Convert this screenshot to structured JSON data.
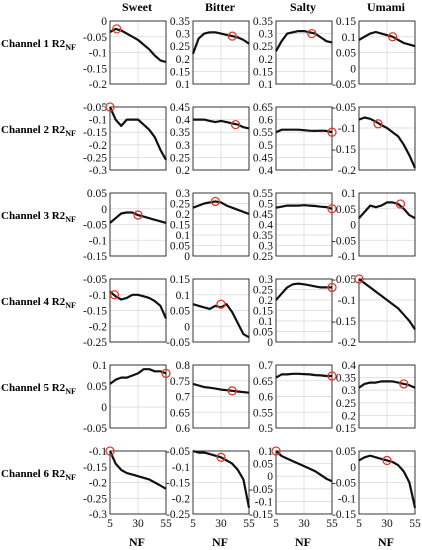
{
  "figure": {
    "columns": [
      "Sweet",
      "Bitter",
      "Salty",
      "Umami"
    ],
    "row_labels": [
      "Channel 1 R2",
      "Channel 2 R2",
      "Channel 3 R2",
      "Channel 4 R2",
      "Channel 5 R2",
      "Channel 6 R2"
    ],
    "row_label_subscript": "NF",
    "xlabel": "NF",
    "colors": {
      "line": "#111111",
      "marker": "#e03a2a",
      "grid": "#d9d9d9"
    }
  },
  "chart_data": [
    {
      "type": "line",
      "row": 1,
      "column": "Sweet",
      "xlim": [
        5,
        55
      ],
      "ylim": [
        -0.2,
        0
      ],
      "yticks": [
        "0",
        "-0.05",
        "-0.1",
        "-0.15",
        "-0.2"
      ],
      "xticks": [],
      "x": [
        5,
        10,
        15,
        20,
        25,
        30,
        35,
        40,
        45,
        50,
        55
      ],
      "y": [
        -0.035,
        -0.025,
        -0.03,
        -0.04,
        -0.05,
        -0.06,
        -0.075,
        -0.09,
        -0.11,
        -0.125,
        -0.13
      ],
      "marker": {
        "x": 11,
        "y": -0.025
      }
    },
    {
      "type": "line",
      "row": 1,
      "column": "Bitter",
      "xlim": [
        5,
        55
      ],
      "ylim": [
        0.1,
        0.35
      ],
      "yticks": [
        "0.35",
        "0.3",
        "0.25",
        "0.2",
        "0.15",
        "0.1"
      ],
      "xticks": [],
      "x": [
        5,
        10,
        15,
        20,
        25,
        30,
        35,
        40,
        45,
        50,
        55
      ],
      "y": [
        0.22,
        0.28,
        0.3,
        0.305,
        0.305,
        0.3,
        0.295,
        0.29,
        0.285,
        0.275,
        0.26
      ],
      "marker": {
        "x": 40,
        "y": 0.29
      }
    },
    {
      "type": "line",
      "row": 1,
      "column": "Salty",
      "xlim": [
        5,
        55
      ],
      "ylim": [
        0.1,
        0.35
      ],
      "yticks": [
        "0.35",
        "0.3",
        "0.25",
        "0.2",
        "0.15",
        "0.1"
      ],
      "xticks": [],
      "x": [
        5,
        10,
        15,
        20,
        25,
        30,
        35,
        40,
        45,
        50,
        55
      ],
      "y": [
        0.23,
        0.27,
        0.3,
        0.305,
        0.31,
        0.31,
        0.305,
        0.3,
        0.285,
        0.27,
        0.265
      ],
      "marker": {
        "x": 37,
        "y": 0.3
      }
    },
    {
      "type": "line",
      "row": 1,
      "column": "Umami",
      "xlim": [
        5,
        55
      ],
      "ylim": [
        -0.05,
        0.15
      ],
      "yticks": [
        "0.15",
        "0.1",
        "0.05",
        "0",
        "-0.05"
      ],
      "xticks": [],
      "x": [
        5,
        10,
        15,
        20,
        25,
        30,
        35,
        40,
        45,
        50,
        55
      ],
      "y": [
        0.09,
        0.1,
        0.11,
        0.115,
        0.11,
        0.105,
        0.1,
        0.09,
        0.08,
        0.075,
        0.07
      ],
      "marker": {
        "x": 35,
        "y": 0.1
      }
    },
    {
      "type": "line",
      "row": 2,
      "column": "Sweet",
      "xlim": [
        5,
        55
      ],
      "ylim": [
        -0.3,
        -0.05
      ],
      "yticks": [
        "-0.05",
        "-0.1",
        "-0.15",
        "-0.2",
        "-0.25",
        "-0.3"
      ],
      "xticks": [],
      "x": [
        5,
        10,
        15,
        20,
        25,
        30,
        35,
        40,
        45,
        50,
        55
      ],
      "y": [
        -0.05,
        -0.1,
        -0.125,
        -0.1,
        -0.1,
        -0.1,
        -0.12,
        -0.14,
        -0.17,
        -0.22,
        -0.26
      ],
      "marker": {
        "x": 5,
        "y": -0.05
      }
    },
    {
      "type": "line",
      "row": 2,
      "column": "Bitter",
      "xlim": [
        5,
        55
      ],
      "ylim": [
        0.2,
        0.45
      ],
      "yticks": [
        "0.45",
        "0.4",
        "0.35",
        "0.3",
        "0.25",
        "0.2"
      ],
      "xticks": [],
      "x": [
        5,
        10,
        15,
        20,
        25,
        30,
        35,
        40,
        45,
        50,
        55
      ],
      "y": [
        0.4,
        0.4,
        0.4,
        0.395,
        0.39,
        0.395,
        0.39,
        0.385,
        0.38,
        0.37,
        0.365
      ],
      "marker": {
        "x": 43,
        "y": 0.38
      }
    },
    {
      "type": "line",
      "row": 2,
      "column": "Salty",
      "xlim": [
        5,
        55
      ],
      "ylim": [
        0.4,
        0.65
      ],
      "yticks": [
        "0.65",
        "0.6",
        "0.55",
        "0.5",
        "0.45",
        "0.4"
      ],
      "xticks": [],
      "x": [
        5,
        10,
        15,
        20,
        25,
        30,
        35,
        40,
        45,
        50,
        55
      ],
      "y": [
        0.55,
        0.56,
        0.56,
        0.56,
        0.56,
        0.558,
        0.556,
        0.555,
        0.556,
        0.555,
        0.55
      ],
      "marker": {
        "x": 55,
        "y": 0.55
      }
    },
    {
      "type": "line",
      "row": 2,
      "column": "Umami",
      "xlim": [
        5,
        55
      ],
      "ylim": [
        -0.2,
        -0.05
      ],
      "yticks": [
        "-0.05",
        "-0.1",
        "-0.15",
        "-0.2"
      ],
      "xticks": [],
      "x": [
        5,
        10,
        15,
        20,
        25,
        30,
        35,
        40,
        45,
        50,
        55
      ],
      "y": [
        -0.08,
        -0.075,
        -0.078,
        -0.085,
        -0.093,
        -0.1,
        -0.11,
        -0.12,
        -0.14,
        -0.165,
        -0.195
      ],
      "marker": {
        "x": 22,
        "y": -0.09
      }
    },
    {
      "type": "line",
      "row": 3,
      "column": "Sweet",
      "xlim": [
        5,
        55
      ],
      "ylim": [
        -0.15,
        0.05
      ],
      "yticks": [
        "0.05",
        "0",
        "-0.05",
        "-0.1",
        "-0.15"
      ],
      "xticks": [],
      "x": [
        5,
        10,
        15,
        20,
        25,
        30,
        35,
        40,
        45,
        50,
        55
      ],
      "y": [
        -0.045,
        -0.03,
        -0.015,
        -0.012,
        -0.012,
        -0.02,
        -0.025,
        -0.03,
        -0.035,
        -0.04,
        -0.045
      ],
      "marker": {
        "x": 30,
        "y": -0.02
      }
    },
    {
      "type": "line",
      "row": 3,
      "column": "Bitter",
      "xlim": [
        5,
        55
      ],
      "ylim": [
        0,
        0.3
      ],
      "yticks": [
        "0.3",
        "0.25",
        "0.2",
        "0.15",
        "0.1",
        "0.05",
        "0"
      ],
      "xticks": [],
      "x": [
        5,
        10,
        15,
        20,
        25,
        30,
        35,
        40,
        45,
        50,
        55
      ],
      "y": [
        0.23,
        0.24,
        0.25,
        0.255,
        0.26,
        0.255,
        0.24,
        0.23,
        0.22,
        0.21,
        0.2
      ],
      "marker": {
        "x": 25,
        "y": 0.26
      }
    },
    {
      "type": "line",
      "row": 3,
      "column": "Salty",
      "xlim": [
        5,
        55
      ],
      "ylim": [
        0.25,
        0.55
      ],
      "yticks": [
        "0.55",
        "0.5",
        "0.45",
        "0.4",
        "0.35",
        "0.3",
        "0.25"
      ],
      "xticks": [],
      "x": [
        5,
        10,
        15,
        20,
        25,
        30,
        35,
        40,
        45,
        50,
        55
      ],
      "y": [
        0.48,
        0.485,
        0.49,
        0.49,
        0.49,
        0.492,
        0.49,
        0.488,
        0.485,
        0.483,
        0.475
      ],
      "marker": {
        "x": 55,
        "y": 0.475
      }
    },
    {
      "type": "line",
      "row": 3,
      "column": "Umami",
      "xlim": [
        5,
        55
      ],
      "ylim": [
        -0.1,
        0.1
      ],
      "yticks": [
        "0.1",
        "0.05",
        "0",
        "-0.05",
        "-0.1"
      ],
      "xticks": [],
      "x": [
        5,
        10,
        15,
        20,
        25,
        30,
        35,
        40,
        45,
        50,
        55
      ],
      "y": [
        0.02,
        0.04,
        0.06,
        0.055,
        0.06,
        0.07,
        0.07,
        0.065,
        0.05,
        0.03,
        0.02
      ],
      "marker": {
        "x": 42,
        "y": 0.065
      }
    },
    {
      "type": "line",
      "row": 4,
      "column": "Sweet",
      "xlim": [
        5,
        55
      ],
      "ylim": [
        -0.25,
        -0.05
      ],
      "yticks": [
        "-0.05",
        "-0.1",
        "-0.15",
        "-0.2",
        "-0.25"
      ],
      "xticks": [],
      "x": [
        5,
        10,
        15,
        20,
        25,
        30,
        35,
        40,
        45,
        50,
        55
      ],
      "y": [
        -0.09,
        -0.105,
        -0.115,
        -0.11,
        -0.1,
        -0.1,
        -0.105,
        -0.11,
        -0.12,
        -0.135,
        -0.175
      ],
      "marker": {
        "x": 9,
        "y": -0.1
      }
    },
    {
      "type": "line",
      "row": 4,
      "column": "Bitter",
      "xlim": [
        5,
        55
      ],
      "ylim": [
        -0.05,
        0.15
      ],
      "yticks": [
        "0.15",
        "0.1",
        "0.05",
        "0",
        "-0.05"
      ],
      "xticks": [],
      "x": [
        5,
        10,
        15,
        20,
        25,
        30,
        35,
        40,
        45,
        50,
        55
      ],
      "y": [
        0.07,
        0.065,
        0.06,
        0.055,
        0.065,
        0.06,
        0.07,
        0.045,
        0.01,
        -0.025,
        -0.035
      ],
      "marker": {
        "x": 30,
        "y": 0.07
      }
    },
    {
      "type": "line",
      "row": 4,
      "column": "Salty",
      "xlim": [
        5,
        55
      ],
      "ylim": [
        0,
        0.3
      ],
      "yticks": [
        "0.3",
        "0.25",
        "0.2",
        "0.15",
        "0.1",
        "0.05",
        "0"
      ],
      "xticks": [],
      "x": [
        5,
        10,
        15,
        20,
        25,
        30,
        35,
        40,
        45,
        50,
        55
      ],
      "y": [
        0.2,
        0.23,
        0.26,
        0.275,
        0.278,
        0.275,
        0.27,
        0.265,
        0.26,
        0.26,
        0.26
      ],
      "marker": {
        "x": 55,
        "y": 0.26
      }
    },
    {
      "type": "line",
      "row": 4,
      "column": "Umami",
      "xlim": [
        5,
        55
      ],
      "ylim": [
        -0.2,
        -0.05
      ],
      "yticks": [
        "-0.05",
        "-0.1",
        "-0.15",
        "-0.2"
      ],
      "xticks": [],
      "x": [
        5,
        10,
        15,
        20,
        25,
        30,
        35,
        40,
        45,
        50,
        55
      ],
      "y": [
        -0.05,
        -0.06,
        -0.07,
        -0.08,
        -0.09,
        -0.1,
        -0.11,
        -0.12,
        -0.135,
        -0.15,
        -0.17
      ],
      "marker": {
        "x": 5,
        "y": -0.05
      }
    },
    {
      "type": "line",
      "row": 5,
      "column": "Sweet",
      "xlim": [
        5,
        55
      ],
      "ylim": [
        -0.05,
        0.1
      ],
      "yticks": [
        "0.1",
        "0.05",
        "0",
        "-0.05"
      ],
      "xticks": [],
      "x": [
        5,
        10,
        15,
        20,
        25,
        30,
        35,
        40,
        45,
        50,
        55
      ],
      "y": [
        0.055,
        0.065,
        0.07,
        0.07,
        0.075,
        0.08,
        0.09,
        0.09,
        0.085,
        0.085,
        0.08
      ],
      "marker": {
        "x": 55,
        "y": 0.08
      }
    },
    {
      "type": "line",
      "row": 5,
      "column": "Bitter",
      "xlim": [
        5,
        55
      ],
      "ylim": [
        0.6,
        0.8
      ],
      "yticks": [
        "0.8",
        "0.75",
        "0.7",
        "0.65",
        "0.6"
      ],
      "xticks": [],
      "x": [
        5,
        10,
        15,
        20,
        25,
        30,
        35,
        40,
        45,
        50,
        55
      ],
      "y": [
        0.74,
        0.735,
        0.73,
        0.728,
        0.725,
        0.722,
        0.72,
        0.718,
        0.716,
        0.714,
        0.712
      ],
      "marker": {
        "x": 40,
        "y": 0.718
      }
    },
    {
      "type": "line",
      "row": 5,
      "column": "Salty",
      "xlim": [
        5,
        55
      ],
      "ylim": [
        0.5,
        0.7
      ],
      "yticks": [
        "0.7",
        "0.65",
        "0.6",
        "0.55",
        "0.5"
      ],
      "xticks": [],
      "x": [
        5,
        10,
        15,
        20,
        25,
        30,
        35,
        40,
        45,
        50,
        55
      ],
      "y": [
        0.66,
        0.67,
        0.67,
        0.672,
        0.672,
        0.671,
        0.67,
        0.668,
        0.667,
        0.665,
        0.665
      ],
      "marker": {
        "x": 55,
        "y": 0.665
      }
    },
    {
      "type": "line",
      "row": 5,
      "column": "Umami",
      "xlim": [
        5,
        55
      ],
      "ylim": [
        0.15,
        0.4
      ],
      "yticks": [
        "0.4",
        "0.35",
        "0.3",
        "0.25",
        "0.2",
        "0.15"
      ],
      "xticks": [],
      "x": [
        5,
        10,
        15,
        20,
        25,
        30,
        35,
        40,
        45,
        50,
        55
      ],
      "y": [
        0.31,
        0.325,
        0.33,
        0.33,
        0.335,
        0.335,
        0.335,
        0.33,
        0.325,
        0.32,
        0.31
      ],
      "marker": {
        "x": 45,
        "y": 0.325
      }
    },
    {
      "type": "line",
      "row": 6,
      "column": "Sweet",
      "xlim": [
        5,
        55
      ],
      "ylim": [
        -0.3,
        -0.1
      ],
      "yticks": [
        "-0.1",
        "-0.15",
        "-0.2",
        "-0.25",
        "-0.3"
      ],
      "xticks": [
        "5",
        "30",
        "55"
      ],
      "x": [
        5,
        10,
        15,
        20,
        25,
        30,
        35,
        40,
        45,
        50,
        55
      ],
      "y": [
        -0.1,
        -0.14,
        -0.16,
        -0.17,
        -0.175,
        -0.18,
        -0.185,
        -0.19,
        -0.2,
        -0.21,
        -0.22
      ],
      "marker": {
        "x": 5,
        "y": -0.1
      }
    },
    {
      "type": "line",
      "row": 6,
      "column": "Bitter",
      "xlim": [
        5,
        55
      ],
      "ylim": [
        -0.25,
        -0.05
      ],
      "yticks": [
        "-0.05",
        "-0.1",
        "-0.15",
        "-0.2",
        "-0.25"
      ],
      "xticks": [
        "5",
        "30",
        "55"
      ],
      "x": [
        5,
        10,
        15,
        20,
        25,
        30,
        35,
        40,
        45,
        50,
        55
      ],
      "y": [
        -0.05,
        -0.055,
        -0.055,
        -0.06,
        -0.065,
        -0.07,
        -0.08,
        -0.09,
        -0.11,
        -0.14,
        -0.23
      ],
      "marker": {
        "x": 30,
        "y": -0.07
      }
    },
    {
      "type": "line",
      "row": 6,
      "column": "Salty",
      "xlim": [
        5,
        55
      ],
      "ylim": [
        -0.15,
        0.1
      ],
      "yticks": [
        "0.1",
        "0.05",
        "0",
        "-0.05",
        "-0.1",
        "-0.15"
      ],
      "xticks": [
        "5",
        "30",
        "55"
      ],
      "x": [
        5,
        10,
        15,
        20,
        25,
        30,
        35,
        40,
        45,
        50,
        55
      ],
      "y": [
        0.1,
        0.08,
        0.07,
        0.06,
        0.05,
        0.04,
        0.03,
        0.02,
        0.005,
        -0.01,
        -0.02
      ],
      "marker": {
        "x": 5,
        "y": 0.1
      }
    },
    {
      "type": "line",
      "row": 6,
      "column": "Umami",
      "xlim": [
        5,
        55
      ],
      "ylim": [
        -0.15,
        0.05
      ],
      "yticks": [
        "0.05",
        "0",
        "-0.05",
        "-0.1",
        "-0.15"
      ],
      "xticks": [
        "5",
        "30",
        "55"
      ],
      "x": [
        5,
        10,
        15,
        20,
        25,
        30,
        35,
        40,
        45,
        50,
        55
      ],
      "y": [
        0.02,
        0.03,
        0.035,
        0.03,
        0.025,
        0.02,
        0.015,
        0.005,
        -0.015,
        -0.05,
        -0.13
      ],
      "marker": {
        "x": 30,
        "y": 0.02
      }
    }
  ]
}
